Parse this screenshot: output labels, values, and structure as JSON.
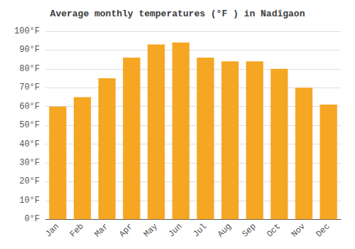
{
  "chart_data": {
    "type": "bar",
    "title": "Average monthly temperatures (°F ) in Nadīgaon",
    "categories": [
      "Jan",
      "Feb",
      "Mar",
      "Apr",
      "May",
      "Jun",
      "Jul",
      "Aug",
      "Sep",
      "Oct",
      "Nov",
      "Dec"
    ],
    "values": [
      60,
      65,
      75,
      86,
      93,
      94,
      86,
      84,
      84,
      80,
      70,
      61
    ],
    "color": "#F5A623",
    "ylim": [
      0,
      100
    ],
    "yticks": [
      {
        "value": 0,
        "label": "0°F"
      },
      {
        "value": 10,
        "label": "10°F"
      },
      {
        "value": 20,
        "label": "20°F"
      },
      {
        "value": 30,
        "label": "30°F"
      },
      {
        "value": 40,
        "label": "40°F"
      },
      {
        "value": 50,
        "label": "50°F"
      },
      {
        "value": 60,
        "label": "60°F"
      },
      {
        "value": 70,
        "label": "70°F"
      },
      {
        "value": 80,
        "label": "80°F"
      },
      {
        "value": 90,
        "label": "90°F"
      },
      {
        "value": 100,
        "label": "100°F"
      }
    ],
    "grid": true
  }
}
